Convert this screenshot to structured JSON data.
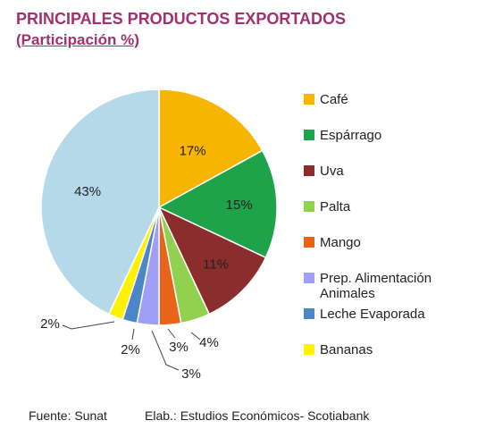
{
  "title": "PRINCIPALES PRODUCTOS EXPORTADOS",
  "subtitle": "(Participación %)",
  "footer": {
    "source": "Fuente: Sunat",
    "elaboration": "Elab.: Estudios Económicos- Scotiabank"
  },
  "chart_data": {
    "type": "pie",
    "start": "top, clockwise",
    "legend_position": "right",
    "slices": [
      {
        "label": "Café",
        "value": 17,
        "display": "17%",
        "color": "#f7b500"
      },
      {
        "label": "Espárrago",
        "value": 15,
        "display": "15%",
        "color": "#1ea34a"
      },
      {
        "label": "Uva",
        "value": 11,
        "display": "11%",
        "color": "#8b2d2d"
      },
      {
        "label": "Palta",
        "value": 4,
        "display": "4%",
        "color": "#92d050"
      },
      {
        "label": "Mango",
        "value": 3,
        "display": "3%",
        "color": "#e8641b"
      },
      {
        "label": "Prep. Alimentación Animales",
        "value": 3,
        "display": "3%",
        "color": "#9f9ff5"
      },
      {
        "label": "Leche Evaporada",
        "value": 2,
        "display": "2%",
        "color": "#4a86c8"
      },
      {
        "label": "Bananas",
        "value": 2,
        "display": "2%",
        "color": "#fff200"
      },
      {
        "label": "",
        "value": 43,
        "display": "43%",
        "color": "#b5d9e9"
      }
    ]
  }
}
